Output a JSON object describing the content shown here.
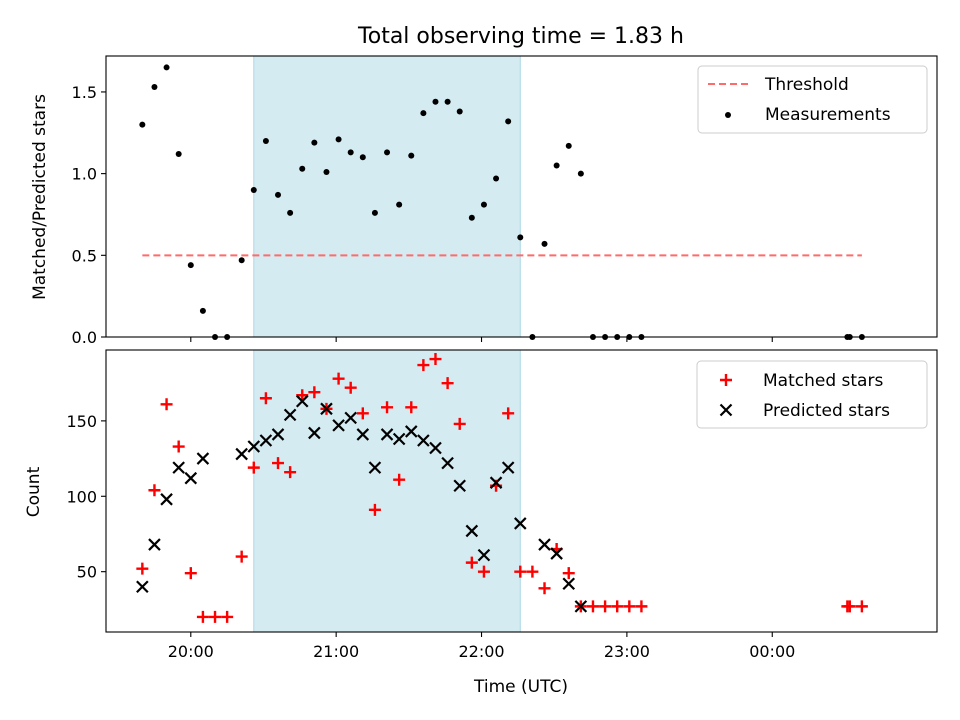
{
  "chart_data": [
    {
      "type": "scatter",
      "title": "Total observing time = 1.83 h",
      "xlabel": "",
      "ylabel": "Matched/Predicted stars",
      "ylim": [
        0,
        1.72
      ],
      "yticks": [
        0,
        0.5,
        1.0,
        1.5
      ],
      "ytick_labels": [
        "0.0",
        "0.5",
        "1.0",
        "1.5"
      ],
      "shaded_span": {
        "start": "20:26",
        "end": "22:16",
        "color": "#add8e6"
      },
      "threshold": {
        "name": "Threshold",
        "value": 0.5,
        "x_range": [
          "19:40",
          "24:37"
        ],
        "color": "#ff6a6a"
      },
      "legend_position": "upper right",
      "series": [
        {
          "name": "Measurements",
          "marker": "dot",
          "color": "#000000",
          "points": [
            [
              "19:40",
              1.3
            ],
            [
              "19:45",
              1.53
            ],
            [
              "19:50",
              1.65
            ],
            [
              "19:55",
              1.12
            ],
            [
              "20:00",
              0.44
            ],
            [
              "20:05",
              0.16
            ],
            [
              "20:10",
              0.0
            ],
            [
              "20:15",
              0.0
            ],
            [
              "20:21",
              0.47
            ],
            [
              "20:26",
              0.9
            ],
            [
              "20:31",
              1.2
            ],
            [
              "20:36",
              0.87
            ],
            [
              "20:41",
              0.76
            ],
            [
              "20:46",
              1.03
            ],
            [
              "20:51",
              1.19
            ],
            [
              "20:56",
              1.01
            ],
            [
              "21:01",
              1.21
            ],
            [
              "21:06",
              1.13
            ],
            [
              "21:11",
              1.1
            ],
            [
              "21:16",
              0.76
            ],
            [
              "21:21",
              1.13
            ],
            [
              "21:26",
              0.81
            ],
            [
              "21:31",
              1.11
            ],
            [
              "21:36",
              1.37
            ],
            [
              "21:41",
              1.44
            ],
            [
              "21:46",
              1.44
            ],
            [
              "21:51",
              1.38
            ],
            [
              "21:56",
              0.73
            ],
            [
              "22:01",
              0.81
            ],
            [
              "22:06",
              0.97
            ],
            [
              "22:11",
              1.32
            ],
            [
              "22:16",
              0.61
            ],
            [
              "22:21",
              0.0
            ],
            [
              "22:26",
              0.57
            ],
            [
              "22:31",
              1.05
            ],
            [
              "22:36",
              1.17
            ],
            [
              "22:41",
              1.0
            ],
            [
              "22:46",
              0.0
            ],
            [
              "22:51",
              0.0
            ],
            [
              "22:56",
              0.0
            ],
            [
              "23:01",
              0.0
            ],
            [
              "23:06",
              0.0
            ],
            [
              "24:31",
              0.0
            ],
            [
              "24:32",
              0.0
            ],
            [
              "24:37",
              0.0
            ]
          ]
        }
      ]
    },
    {
      "type": "scatter",
      "title": "",
      "xlabel": "Time (UTC)",
      "ylabel": "Count",
      "ylim": [
        10,
        197
      ],
      "yticks": [
        50,
        100,
        150
      ],
      "ytick_labels": [
        "50",
        "100",
        "150"
      ],
      "xticks": [
        "20:00",
        "21:00",
        "22:00",
        "23:00",
        "24:00"
      ],
      "xtick_labels": [
        "20:00",
        "21:00",
        "22:00",
        "23:00",
        "00:00"
      ],
      "xlim": [
        "19:25",
        "25:08"
      ],
      "shaded_span": {
        "start": "20:26",
        "end": "22:16",
        "color": "#add8e6"
      },
      "legend_position": "upper right",
      "series": [
        {
          "name": "Matched stars",
          "marker": "plus",
          "color": "#ff0000",
          "points": [
            [
              "19:40",
              52
            ],
            [
              "19:45",
              104
            ],
            [
              "19:50",
              161
            ],
            [
              "19:55",
              133
            ],
            [
              "20:00",
              49
            ],
            [
              "20:05",
              20
            ],
            [
              "20:10",
              20
            ],
            [
              "20:15",
              20
            ],
            [
              "20:21",
              60
            ],
            [
              "20:26",
              119
            ],
            [
              "20:31",
              165
            ],
            [
              "20:36",
              122
            ],
            [
              "20:41",
              116
            ],
            [
              "20:46",
              167
            ],
            [
              "20:51",
              169
            ],
            [
              "20:56",
              158
            ],
            [
              "21:01",
              178
            ],
            [
              "21:06",
              172
            ],
            [
              "21:11",
              155
            ],
            [
              "21:16",
              91
            ],
            [
              "21:21",
              159
            ],
            [
              "21:26",
              111
            ],
            [
              "21:31",
              159
            ],
            [
              "21:36",
              187
            ],
            [
              "21:41",
              191
            ],
            [
              "21:46",
              175
            ],
            [
              "21:51",
              148
            ],
            [
              "21:56",
              56
            ],
            [
              "22:01",
              50
            ],
            [
              "22:06",
              107
            ],
            [
              "22:11",
              155
            ],
            [
              "22:16",
              50
            ],
            [
              "22:21",
              50
            ],
            [
              "22:26",
              39
            ],
            [
              "22:31",
              65
            ],
            [
              "22:36",
              49
            ],
            [
              "22:41",
              27
            ],
            [
              "22:46",
              27
            ],
            [
              "22:51",
              27
            ],
            [
              "22:56",
              27
            ],
            [
              "23:01",
              27
            ],
            [
              "23:06",
              27
            ],
            [
              "24:31",
              27
            ],
            [
              "24:32",
              27
            ],
            [
              "24:37",
              27
            ]
          ]
        },
        {
          "name": "Predicted stars",
          "marker": "x",
          "color": "#000000",
          "points": [
            [
              "19:40",
              40
            ],
            [
              "19:45",
              68
            ],
            [
              "19:50",
              98
            ],
            [
              "19:55",
              119
            ],
            [
              "20:00",
              112
            ],
            [
              "20:05",
              125
            ],
            [
              "20:21",
              128
            ],
            [
              "20:26",
              133
            ],
            [
              "20:31",
              137
            ],
            [
              "20:36",
              141
            ],
            [
              "20:41",
              154
            ],
            [
              "20:46",
              163
            ],
            [
              "20:51",
              142
            ],
            [
              "20:56",
              158
            ],
            [
              "21:01",
              147
            ],
            [
              "21:06",
              152
            ],
            [
              "21:11",
              141
            ],
            [
              "21:16",
              119
            ],
            [
              "21:21",
              141
            ],
            [
              "21:26",
              138
            ],
            [
              "21:31",
              143
            ],
            [
              "21:36",
              137
            ],
            [
              "21:41",
              132
            ],
            [
              "21:46",
              122
            ],
            [
              "21:51",
              107
            ],
            [
              "21:56",
              77
            ],
            [
              "22:01",
              61
            ],
            [
              "22:06",
              109
            ],
            [
              "22:11",
              119
            ],
            [
              "22:16",
              82
            ],
            [
              "22:26",
              68
            ],
            [
              "22:31",
              62
            ],
            [
              "22:36",
              42
            ],
            [
              "22:41",
              27
            ]
          ]
        }
      ]
    }
  ]
}
